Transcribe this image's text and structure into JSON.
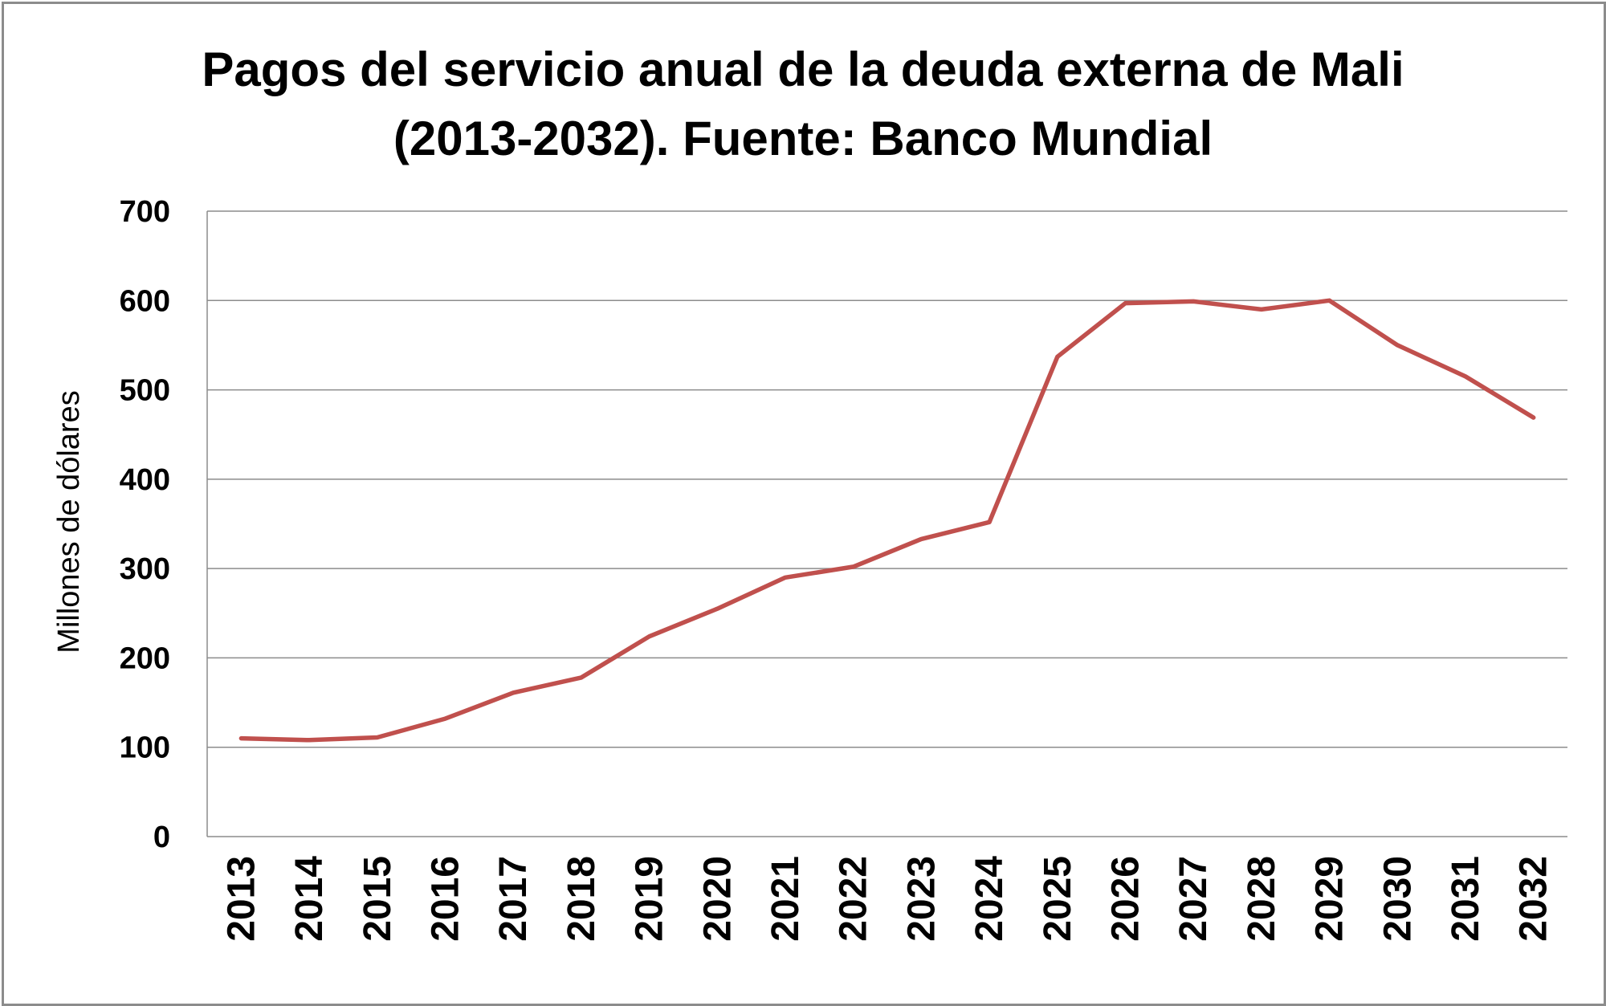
{
  "chart_data": {
    "type": "line",
    "title_lines": [
      "Pagos del servicio anual de la deuda externa de Mali",
      "(2013-2032). Fuente: Banco Mundial"
    ],
    "xlabel": "",
    "ylabel": "Millones de dólares",
    "ylim": [
      0,
      700
    ],
    "yticks": [
      "0",
      "100",
      "200",
      "300",
      "400",
      "500",
      "600",
      "700"
    ],
    "categories": [
      "2013",
      "2014",
      "2015",
      "2016",
      "2017",
      "2018",
      "2019",
      "2020",
      "2021",
      "2022",
      "2023",
      "2024",
      "2025",
      "2026",
      "2027",
      "2028",
      "2029",
      "2030",
      "2031",
      "2032"
    ],
    "series": [
      {
        "values": [
          110,
          108,
          111,
          132,
          161,
          178,
          224,
          255,
          290,
          302,
          333,
          352,
          537,
          597,
          599,
          590,
          600,
          550,
          515,
          469
        ],
        "color": "#c0504d"
      }
    ],
    "grid": true,
    "legend": "none"
  }
}
